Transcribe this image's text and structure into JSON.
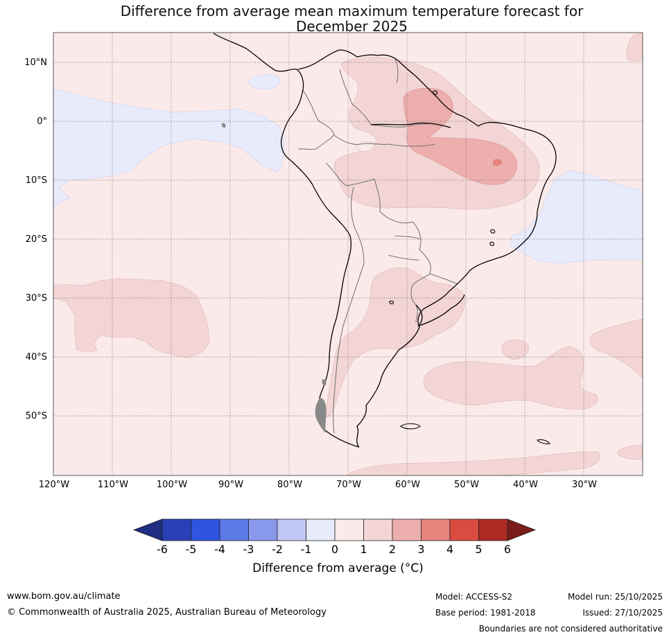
{
  "title": {
    "line1": "Difference from average mean maximum temperature forecast for",
    "line2": "December 2025"
  },
  "map": {
    "lat_labels": [
      "10°N",
      "0°",
      "10°S",
      "20°S",
      "30°S",
      "40°S",
      "50°S"
    ],
    "lon_labels": [
      "120°W",
      "110°W",
      "100°W",
      "90°W",
      "80°W",
      "70°W",
      "60°W",
      "50°W",
      "40°W",
      "30°W"
    ],
    "colors": {
      "below_2": "#c2c8f5",
      "below_1": "#e8ebfb",
      "above_0": "#fbeaea",
      "above_1": "#f4d5d5",
      "above_2": "#edaeae",
      "above_3": "#e6847e"
    }
  },
  "colorbar": {
    "ticks": [
      "-6",
      "-5",
      "-4",
      "-3",
      "-2",
      "-1",
      "0",
      "1",
      "2",
      "3",
      "4",
      "5",
      "6"
    ],
    "colors": [
      "#1f2e80",
      "#2940b7",
      "#2f55e0",
      "#5d79e6",
      "#8899ec",
      "#c2c8f5",
      "#e8ebfb",
      "#fbeaea",
      "#f4d5d5",
      "#edaeae",
      "#e6847e",
      "#d94c3f",
      "#ad2a22",
      "#7a1c1a"
    ],
    "label": "Difference from average (°C)"
  },
  "footer": {
    "website": "www.bom.gov.au/climate",
    "copyright": "© Commonwealth of Australia 2025, Australian Bureau of Meteorology",
    "model": "Model: ACCESS-S2",
    "base_period": "Base period: 1981-2018",
    "model_run": "Model run: 25/10/2025",
    "issued": "Issued: 27/10/2025",
    "disclaimer": "Boundaries are not considered authoritative"
  }
}
